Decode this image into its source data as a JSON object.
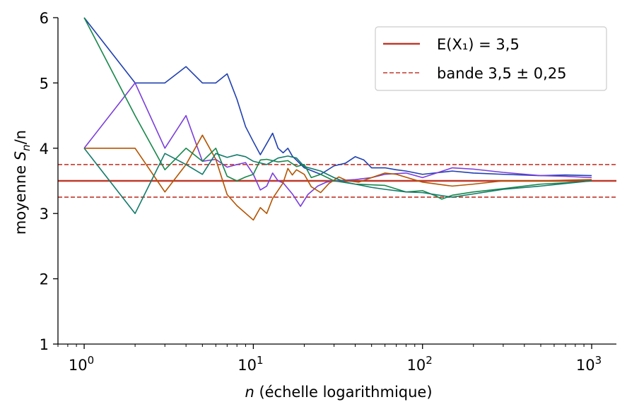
{
  "chart_data": {
    "type": "line",
    "x_scale": "log",
    "xlim": [
      0.7,
      1400
    ],
    "ylim": [
      1,
      6
    ],
    "xlabel": {
      "var": "n",
      "rest": " (échelle logarithmique)"
    },
    "ylabel": {
      "prefix": "moyenne ",
      "var": "S",
      "sub": "n",
      "suffix": "/n"
    },
    "y_ticks": [
      1,
      2,
      3,
      4,
      5,
      6
    ],
    "x_ticks": [
      {
        "value": 1,
        "base": "10",
        "exp": "0"
      },
      {
        "value": 10,
        "base": "10",
        "exp": "1"
      },
      {
        "value": 100,
        "base": "10",
        "exp": "2"
      },
      {
        "value": 1000,
        "base": "10",
        "exp": "3"
      }
    ],
    "grid": false,
    "legend": {
      "placement": "top-right",
      "entries": [
        {
          "label": "E(X₁) = 3,5",
          "style": "solid",
          "color": "#c0392b"
        },
        {
          "label": "bande 3,5 ± 0,25",
          "style": "dashed",
          "color": "#c0392b"
        }
      ]
    },
    "reference_lines": [
      {
        "y": 3.5,
        "style": "solid",
        "color": "#c0392b"
      },
      {
        "y": 3.75,
        "style": "dashed",
        "color": "#c0392b"
      },
      {
        "y": 3.25,
        "style": "dashed",
        "color": "#c0392b"
      }
    ],
    "series": [
      {
        "color": "#1f3fb0",
        "points": [
          [
            1,
            6
          ],
          [
            2,
            5
          ],
          [
            3,
            5
          ],
          [
            4,
            5.25
          ],
          [
            5,
            5
          ],
          [
            6,
            5
          ],
          [
            7,
            5.14
          ],
          [
            8,
            4.75
          ],
          [
            9,
            4.33
          ],
          [
            10,
            4.1
          ],
          [
            11,
            3.9
          ],
          [
            13,
            4.23
          ],
          [
            14,
            4.0
          ],
          [
            15,
            3.93
          ],
          [
            16,
            4.0
          ],
          [
            17,
            3.88
          ],
          [
            20,
            3.7
          ],
          [
            25,
            3.6
          ],
          [
            30,
            3.73
          ],
          [
            35,
            3.77
          ],
          [
            40,
            3.87
          ],
          [
            45,
            3.82
          ],
          [
            50,
            3.7
          ],
          [
            60,
            3.7
          ],
          [
            70,
            3.67
          ],
          [
            80,
            3.65
          ],
          [
            100,
            3.6
          ],
          [
            150,
            3.65
          ],
          [
            200,
            3.62
          ],
          [
            300,
            3.6
          ],
          [
            500,
            3.58
          ],
          [
            700,
            3.59
          ],
          [
            1000,
            3.58
          ]
        ]
      },
      {
        "color": "#7a3ddb",
        "points": [
          [
            1,
            4
          ],
          [
            2,
            5
          ],
          [
            3,
            4
          ],
          [
            4,
            4.5
          ],
          [
            5,
            3.8
          ],
          [
            6,
            3.83
          ],
          [
            7,
            3.71
          ],
          [
            8,
            3.75
          ],
          [
            9,
            3.78
          ],
          [
            10,
            3.6
          ],
          [
            11,
            3.36
          ],
          [
            12,
            3.42
          ],
          [
            13,
            3.62
          ],
          [
            14,
            3.5
          ],
          [
            15,
            3.47
          ],
          [
            17,
            3.3
          ],
          [
            19,
            3.11
          ],
          [
            21,
            3.29
          ],
          [
            24,
            3.42
          ],
          [
            27,
            3.48
          ],
          [
            30,
            3.5
          ],
          [
            40,
            3.52
          ],
          [
            50,
            3.55
          ],
          [
            60,
            3.6
          ],
          [
            80,
            3.62
          ],
          [
            100,
            3.55
          ],
          [
            150,
            3.7
          ],
          [
            200,
            3.68
          ],
          [
            300,
            3.63
          ],
          [
            500,
            3.58
          ],
          [
            700,
            3.57
          ],
          [
            1000,
            3.55
          ]
        ]
      },
      {
        "color": "#b35400",
        "points": [
          [
            1,
            4
          ],
          [
            2,
            4
          ],
          [
            3,
            3.33
          ],
          [
            4,
            3.75
          ],
          [
            5,
            4.2
          ],
          [
            6,
            3.83
          ],
          [
            7,
            3.29
          ],
          [
            8,
            3.12
          ],
          [
            10,
            2.9
          ],
          [
            11,
            3.09
          ],
          [
            12,
            3.0
          ],
          [
            13,
            3.23
          ],
          [
            15,
            3.47
          ],
          [
            16,
            3.69
          ],
          [
            17,
            3.59
          ],
          [
            18,
            3.67
          ],
          [
            20,
            3.6
          ],
          [
            22,
            3.41
          ],
          [
            25,
            3.32
          ],
          [
            28,
            3.46
          ],
          [
            32,
            3.56
          ],
          [
            36,
            3.5
          ],
          [
            42,
            3.48
          ],
          [
            50,
            3.55
          ],
          [
            60,
            3.62
          ],
          [
            70,
            3.6
          ],
          [
            100,
            3.48
          ],
          [
            150,
            3.42
          ],
          [
            200,
            3.45
          ],
          [
            300,
            3.5
          ],
          [
            500,
            3.5
          ],
          [
            700,
            3.51
          ],
          [
            1000,
            3.52
          ]
        ]
      },
      {
        "color": "#16874a",
        "points": [
          [
            1,
            6
          ],
          [
            2,
            4.5
          ],
          [
            3,
            3.67
          ],
          [
            4,
            4.0
          ],
          [
            5,
            3.8
          ],
          [
            6,
            4.0
          ],
          [
            7,
            3.57
          ],
          [
            8,
            3.5
          ],
          [
            9,
            3.56
          ],
          [
            10,
            3.6
          ],
          [
            11,
            3.82
          ],
          [
            12,
            3.83
          ],
          [
            14,
            3.79
          ],
          [
            16,
            3.81
          ],
          [
            18,
            3.72
          ],
          [
            20,
            3.75
          ],
          [
            22,
            3.55
          ],
          [
            25,
            3.6
          ],
          [
            30,
            3.5
          ],
          [
            40,
            3.45
          ],
          [
            60,
            3.43
          ],
          [
            80,
            3.33
          ],
          [
            100,
            3.35
          ],
          [
            120,
            3.27
          ],
          [
            130,
            3.22
          ],
          [
            150,
            3.28
          ],
          [
            200,
            3.33
          ],
          [
            300,
            3.38
          ],
          [
            500,
            3.45
          ],
          [
            700,
            3.47
          ],
          [
            1000,
            3.5
          ]
        ]
      },
      {
        "color": "#127a6a",
        "points": [
          [
            1,
            4
          ],
          [
            2,
            3
          ],
          [
            3,
            3.92
          ],
          [
            4,
            3.75
          ],
          [
            5,
            3.6
          ],
          [
            6,
            3.92
          ],
          [
            7,
            3.86
          ],
          [
            8,
            3.9
          ],
          [
            9,
            3.87
          ],
          [
            10,
            3.8
          ],
          [
            12,
            3.75
          ],
          [
            14,
            3.85
          ],
          [
            16,
            3.88
          ],
          [
            18,
            3.85
          ],
          [
            20,
            3.72
          ],
          [
            25,
            3.65
          ],
          [
            30,
            3.55
          ],
          [
            35,
            3.48
          ],
          [
            40,
            3.45
          ],
          [
            50,
            3.4
          ],
          [
            60,
            3.37
          ],
          [
            80,
            3.33
          ],
          [
            100,
            3.32
          ],
          [
            150,
            3.25
          ],
          [
            200,
            3.3
          ],
          [
            300,
            3.37
          ],
          [
            500,
            3.42
          ],
          [
            700,
            3.46
          ],
          [
            1000,
            3.5
          ]
        ]
      }
    ]
  }
}
